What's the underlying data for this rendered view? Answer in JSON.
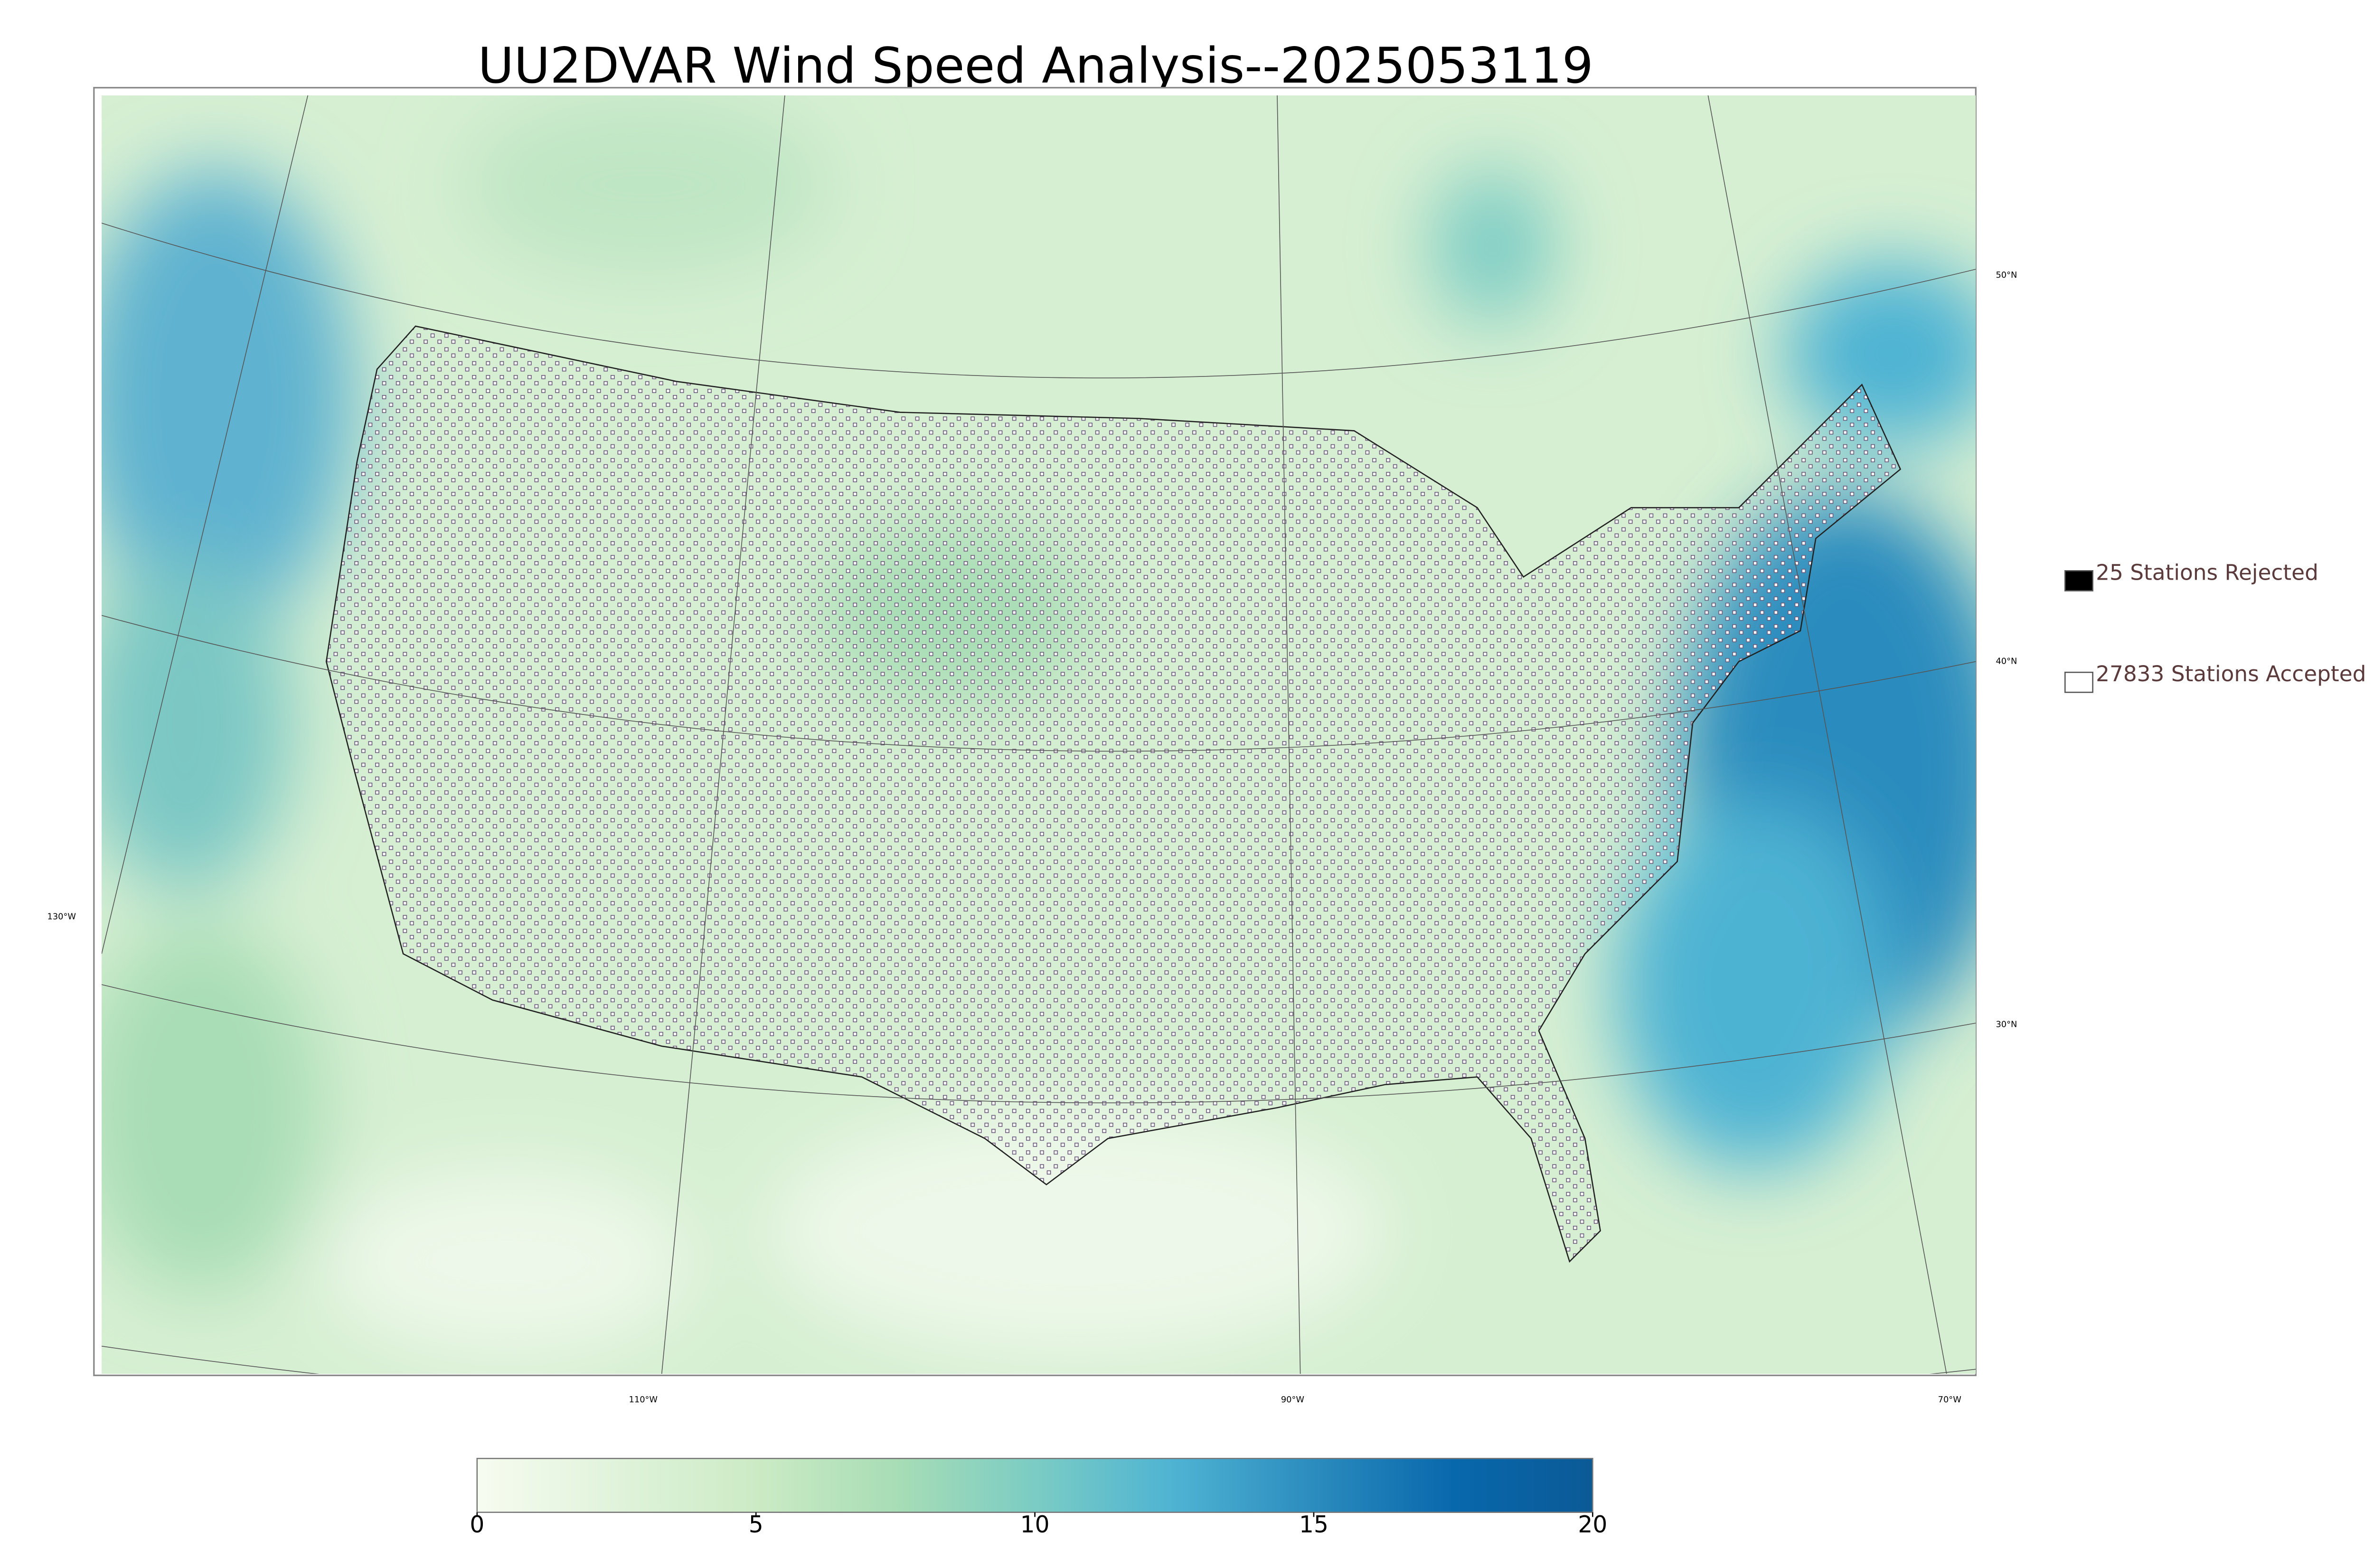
{
  "title": "UU2DVAR Wind Speed Analysis--2025053119",
  "legend": [
    {
      "label": "25 Stations Rejected",
      "fill": "#000000"
    },
    {
      "label": "27833 Stations Accepted",
      "fill": "#ffffff"
    }
  ],
  "latitude_labels": [
    "50°N",
    "40°N",
    "30°N"
  ],
  "longitude_labels": [
    "130°W",
    "110°W",
    "90°W",
    "70°W"
  ],
  "colorbar": {
    "range": [
      0,
      20
    ],
    "ticks": [
      0,
      5,
      10,
      15,
      20
    ],
    "colors": [
      "#f7fcf0",
      "#e0f3db",
      "#ccebc5",
      "#a8ddb5",
      "#7bccc4",
      "#4eb3d3",
      "#2b8cbe",
      "#0868ac",
      "#0b5a96"
    ]
  }
}
